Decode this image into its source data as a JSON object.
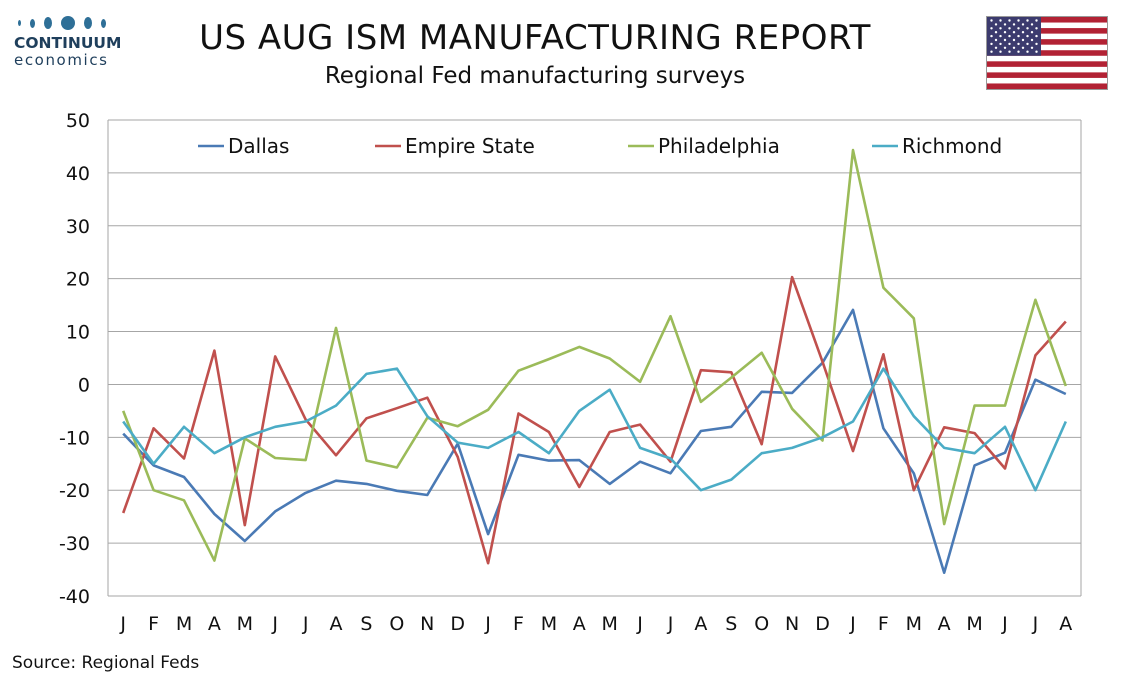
{
  "logo": {
    "name": "CONTINUUM",
    "sub": "economics"
  },
  "header": {
    "title": "US AUG ISM MANUFACTURING REPORT",
    "subtitle": "Regional Fed manufacturing surveys",
    "flag_icon": "us-flag-icon"
  },
  "source": "Source: Regional Feds",
  "chart_data": {
    "type": "line",
    "title": "",
    "xlabel": "",
    "ylabel": "",
    "ylim": [
      -40,
      50
    ],
    "y_ticks": [
      50,
      40,
      30,
      20,
      10,
      0,
      -10,
      -20,
      -30,
      -40
    ],
    "grid": true,
    "legend_position": "top",
    "categories": [
      "J",
      "F",
      "M",
      "A",
      "M",
      "J",
      "J",
      "A",
      "S",
      "O",
      "N",
      "D",
      "J",
      "F",
      "M",
      "A",
      "M",
      "J",
      "J",
      "A",
      "S",
      "O",
      "N",
      "D",
      "J",
      "F",
      "M",
      "A",
      "M",
      "J",
      "J",
      "A"
    ],
    "series": [
      {
        "name": "Dallas",
        "color": "#4a7ab5",
        "values": [
          -9.3,
          -15.3,
          -17.5,
          -24.5,
          -29.6,
          -24,
          -20.5,
          -18.2,
          -18.8,
          -20.1,
          -20.9,
          -11.2,
          -28.3,
          -13.3,
          -14.4,
          -14.3,
          -18.8,
          -14.6,
          -16.8,
          -8.8,
          -8,
          -1.4,
          -1.6,
          4.1,
          14.1,
          -8.3,
          -16.8,
          -35.6,
          -15.3,
          -12.9,
          0.9,
          -1.8
        ]
      },
      {
        "name": "Empire State",
        "color": "#c0504d",
        "values": [
          -24.3,
          -8.3,
          -14,
          6.4,
          -26.6,
          5.3,
          -6.6,
          -13.4,
          -6.4,
          -4.5,
          -2.5,
          -13.7,
          -33.8,
          -5.5,
          -9,
          -19.4,
          -9,
          -7.6,
          -14.6,
          2.7,
          2.3,
          -11.3,
          20.3,
          4.3,
          -12.6,
          5.7,
          -20,
          -8.1,
          -9.2,
          -15.9,
          5.5,
          11.9
        ]
      },
      {
        "name": "Philadelphia",
        "color": "#9bbb59",
        "values": [
          -5,
          -20,
          -21.9,
          -33.3,
          -10.2,
          -13.9,
          -14.3,
          10.7,
          -14.4,
          -15.7,
          -6.3,
          -7.9,
          -4.8,
          2.6,
          4.8,
          7.1,
          4.9,
          0.5,
          12.9,
          -3.3,
          1.3,
          6,
          -4.6,
          -10.6,
          44.3,
          18.3,
          12.5,
          -26.4,
          -4,
          -4,
          16,
          -0.3
        ]
      },
      {
        "name": "Richmond",
        "color": "#4bacc6",
        "values": [
          -7,
          -15,
          -8,
          -13,
          -10,
          -8,
          -7,
          -4,
          2,
          3,
          -6,
          -11,
          -12,
          -9,
          -13,
          -5,
          -1,
          -12,
          -14,
          -20,
          -18,
          -13,
          -12,
          -10,
          -7,
          3,
          -6,
          -12,
          -13,
          -8,
          -20,
          -7
        ]
      }
    ]
  }
}
